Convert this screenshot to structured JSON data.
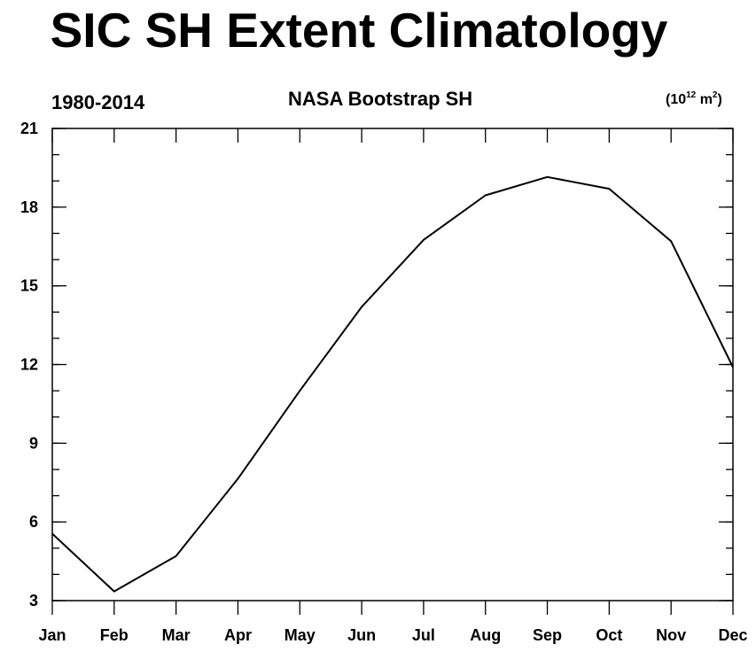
{
  "title": "SIC SH Extent Climatology",
  "left_string": "1980-2014",
  "center_string": "NASA Bootstrap SH",
  "units": {
    "base": "(10",
    "exp1": "12",
    "mid": " m",
    "exp2": "2",
    "end": ")"
  },
  "chart_data": {
    "type": "line",
    "title": "SIC SH Extent Climatology",
    "categories": [
      "Jan",
      "Feb",
      "Mar",
      "Apr",
      "May",
      "Jun",
      "Jul",
      "Aug",
      "Sep",
      "Oct",
      "Nov",
      "Dec"
    ],
    "series": [
      {
        "values": [
          5.55,
          3.35,
          4.7,
          7.65,
          11.0,
          14.2,
          16.75,
          18.45,
          19.15,
          18.7,
          16.7,
          11.9
        ]
      }
    ],
    "ylim": [
      3,
      21
    ],
    "yticks": [
      3,
      6,
      9,
      12,
      15,
      18,
      21
    ],
    "yminor_step": 1,
    "grid": false,
    "legend": "none",
    "line_color": "#000000"
  }
}
